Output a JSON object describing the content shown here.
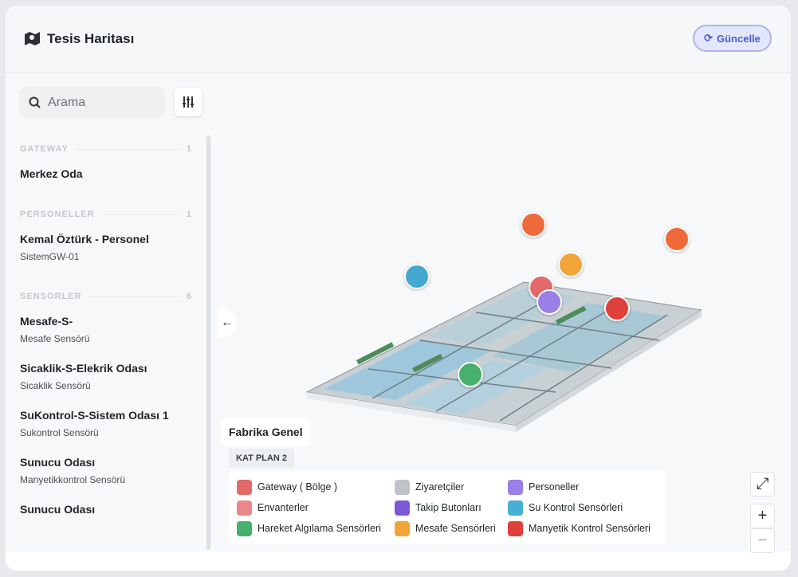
{
  "header": {
    "title": "Tesis Haritası",
    "button": "Güncelle"
  },
  "search": {
    "placeholder": "Arama"
  },
  "sidebar": {
    "groups": [
      {
        "title": "GATEWAY",
        "count": 1,
        "items": [
          {
            "name": "Merkez Oda"
          }
        ]
      },
      {
        "title": "PERSONELLER",
        "count": 1,
        "items": [
          {
            "name": "Kemal Öztürk - Personel",
            "sub": "SistemGW-01"
          }
        ]
      },
      {
        "title": "SENSORLER",
        "count": 6,
        "items": [
          {
            "name": "Mesafe-S-",
            "sub": "Mesafe Sensörü"
          },
          {
            "name": "Sicaklik-S-Elekrik Odası",
            "sub": "Sicaklik Sensörü"
          },
          {
            "name": "SuKontrol-S-Sistem Odası 1",
            "sub": "Sukontrol Sensörü"
          },
          {
            "name": "Sunucu Odası",
            "sub": "Manyetikkontrol Sensörü"
          },
          {
            "name": "Sunucu Odası"
          }
        ]
      }
    ]
  },
  "map": {
    "title": "Fabrika Genel",
    "floor": "KAT PLAN 2"
  },
  "legend": [
    "Gateway ( Bölge )",
    "Envanterler",
    "Hareket Algılama Sensörleri",
    "Ziyaretçiler",
    "Takip Butonları",
    "Mesafe Sensörleri",
    "Personeller",
    "Su Kontrol Sensörleri",
    "Manyetik Kontrol Sensörleri"
  ]
}
